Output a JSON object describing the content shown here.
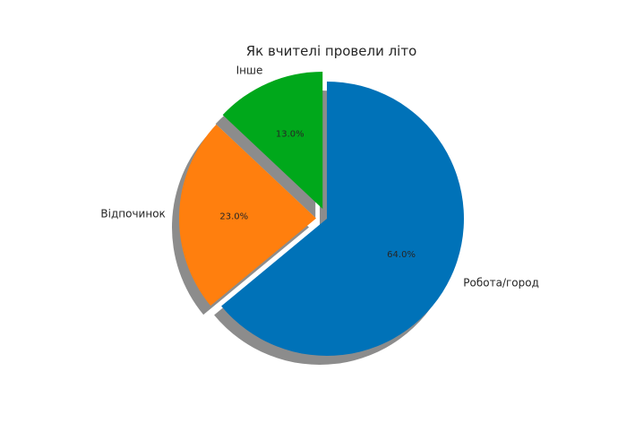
{
  "chart_data": {
    "type": "pie",
    "title": "Як вчителі провели літо",
    "slices": [
      {
        "label": "Робота/город",
        "value": 64.0,
        "pct_label": "64.0%",
        "color": "#0072b8"
      },
      {
        "label": "Відпочинок",
        "value": 23.0,
        "pct_label": "23.0%",
        "color": "#ff7f0e"
      },
      {
        "label": "Інше",
        "value": 13.0,
        "pct_label": "13.0%",
        "color": "#00a81b"
      }
    ],
    "shadow": true,
    "exploded": [
      "Відпочинок",
      "Інше"
    ]
  }
}
